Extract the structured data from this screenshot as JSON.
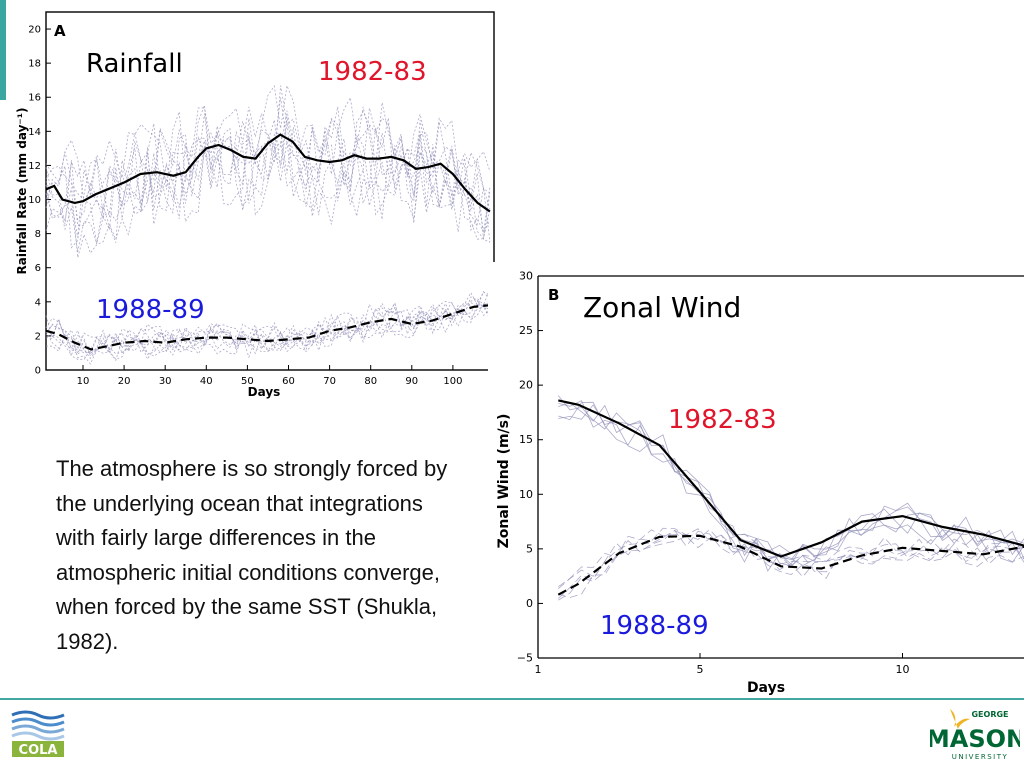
{
  "slide": {
    "body_text": "The atmosphere is so strongly forced by the underlying ocean that integrations with fairly large differences in the atmospheric initial conditions converge, when forced by the same SST (Shukla, 1982).",
    "colors": {
      "accent": "#43a6a0",
      "red_label": "#e0142a",
      "blue_label": "#1a1adc"
    }
  },
  "logos": {
    "cola": {
      "text": "COLA"
    },
    "gmu": {
      "text_top": "GEORGE",
      "text_main": "MASON",
      "text_sub": "UNIVERSITY"
    }
  },
  "chart_data": [
    {
      "type": "line",
      "panel_letter": "A",
      "title": "Rainfall",
      "xlabel": "Days",
      "ylabel": "Rainfall Rate (mm day⁻¹)",
      "xlim": [
        1,
        110
      ],
      "ylim": [
        0,
        21
      ],
      "xticks": [
        10,
        20,
        30,
        40,
        50,
        60,
        70,
        80,
        90,
        100
      ],
      "yticks": [
        0,
        2,
        4,
        6,
        8,
        10,
        12,
        14,
        16,
        18,
        20
      ],
      "annotations": [
        {
          "text": "1982-83",
          "color": "#e0142a"
        },
        {
          "text": "1988-89",
          "color": "#1a1adc"
        }
      ],
      "series": [
        {
          "period": "1982-83",
          "style": "solid",
          "x": [
            1,
            3,
            5,
            8,
            10,
            13,
            16,
            20,
            24,
            28,
            32,
            35,
            38,
            40,
            43,
            46,
            49,
            52,
            55,
            58,
            61,
            64,
            67,
            70,
            73,
            76,
            79,
            82,
            85,
            88,
            91,
            94,
            97,
            100,
            103,
            106,
            109
          ],
          "y": [
            10.6,
            10.8,
            10,
            9.8,
            9.9,
            10.3,
            10.6,
            11,
            11.5,
            11.6,
            11.4,
            11.6,
            12.5,
            13,
            13.2,
            12.9,
            12.5,
            12.4,
            13.3,
            13.8,
            13.4,
            12.5,
            12.3,
            12.2,
            12.3,
            12.6,
            12.4,
            12.4,
            12.5,
            12.3,
            11.8,
            11.9,
            12.1,
            11.5,
            10.6,
            9.8,
            9.3
          ]
        },
        {
          "period": "1988-89",
          "style": "dashed",
          "x": [
            1,
            4,
            8,
            12,
            16,
            20,
            25,
            30,
            35,
            40,
            45,
            50,
            55,
            60,
            65,
            70,
            75,
            80,
            85,
            90,
            95,
            100,
            105,
            109
          ],
          "y": [
            2.3,
            2.1,
            1.6,
            1.2,
            1.4,
            1.6,
            1.7,
            1.6,
            1.8,
            1.9,
            1.9,
            1.8,
            1.7,
            1.8,
            1.9,
            2.3,
            2.5,
            2.8,
            3,
            2.7,
            2.9,
            3.3,
            3.7,
            3.8
          ]
        }
      ]
    },
    {
      "type": "line",
      "panel_letter": "B",
      "title": "Zonal Wind",
      "xlabel": "Days",
      "ylabel": "Zonal Wind (m/s)",
      "xlim": [
        1,
        13
      ],
      "ylim": [
        -5,
        30
      ],
      "xticks": [
        1,
        5,
        10
      ],
      "yticks": [
        -5,
        0,
        5,
        10,
        15,
        20,
        25,
        30
      ],
      "annotations": [
        {
          "text": "1982-83",
          "color": "#e0142a"
        },
        {
          "text": "1988-89",
          "color": "#1a1adc"
        }
      ],
      "series": [
        {
          "period": "1982-83",
          "style": "solid",
          "x": [
            1.5,
            2,
            3,
            4,
            5,
            6,
            7,
            8,
            9,
            10,
            11,
            12,
            13
          ],
          "y": [
            18.6,
            18.2,
            16.5,
            14.5,
            10.2,
            5.8,
            4.3,
            5.6,
            7.5,
            8,
            7,
            6.3,
            5.3
          ]
        },
        {
          "period": "1988-89",
          "style": "dashed",
          "x": [
            1.5,
            2,
            3,
            4,
            5,
            6,
            7,
            8,
            9,
            10,
            11,
            12,
            13
          ],
          "y": [
            0.8,
            1.8,
            4.6,
            6.1,
            6.2,
            5.2,
            3.4,
            3.2,
            4.4,
            5.1,
            4.8,
            4.5,
            5.2
          ]
        }
      ]
    }
  ]
}
